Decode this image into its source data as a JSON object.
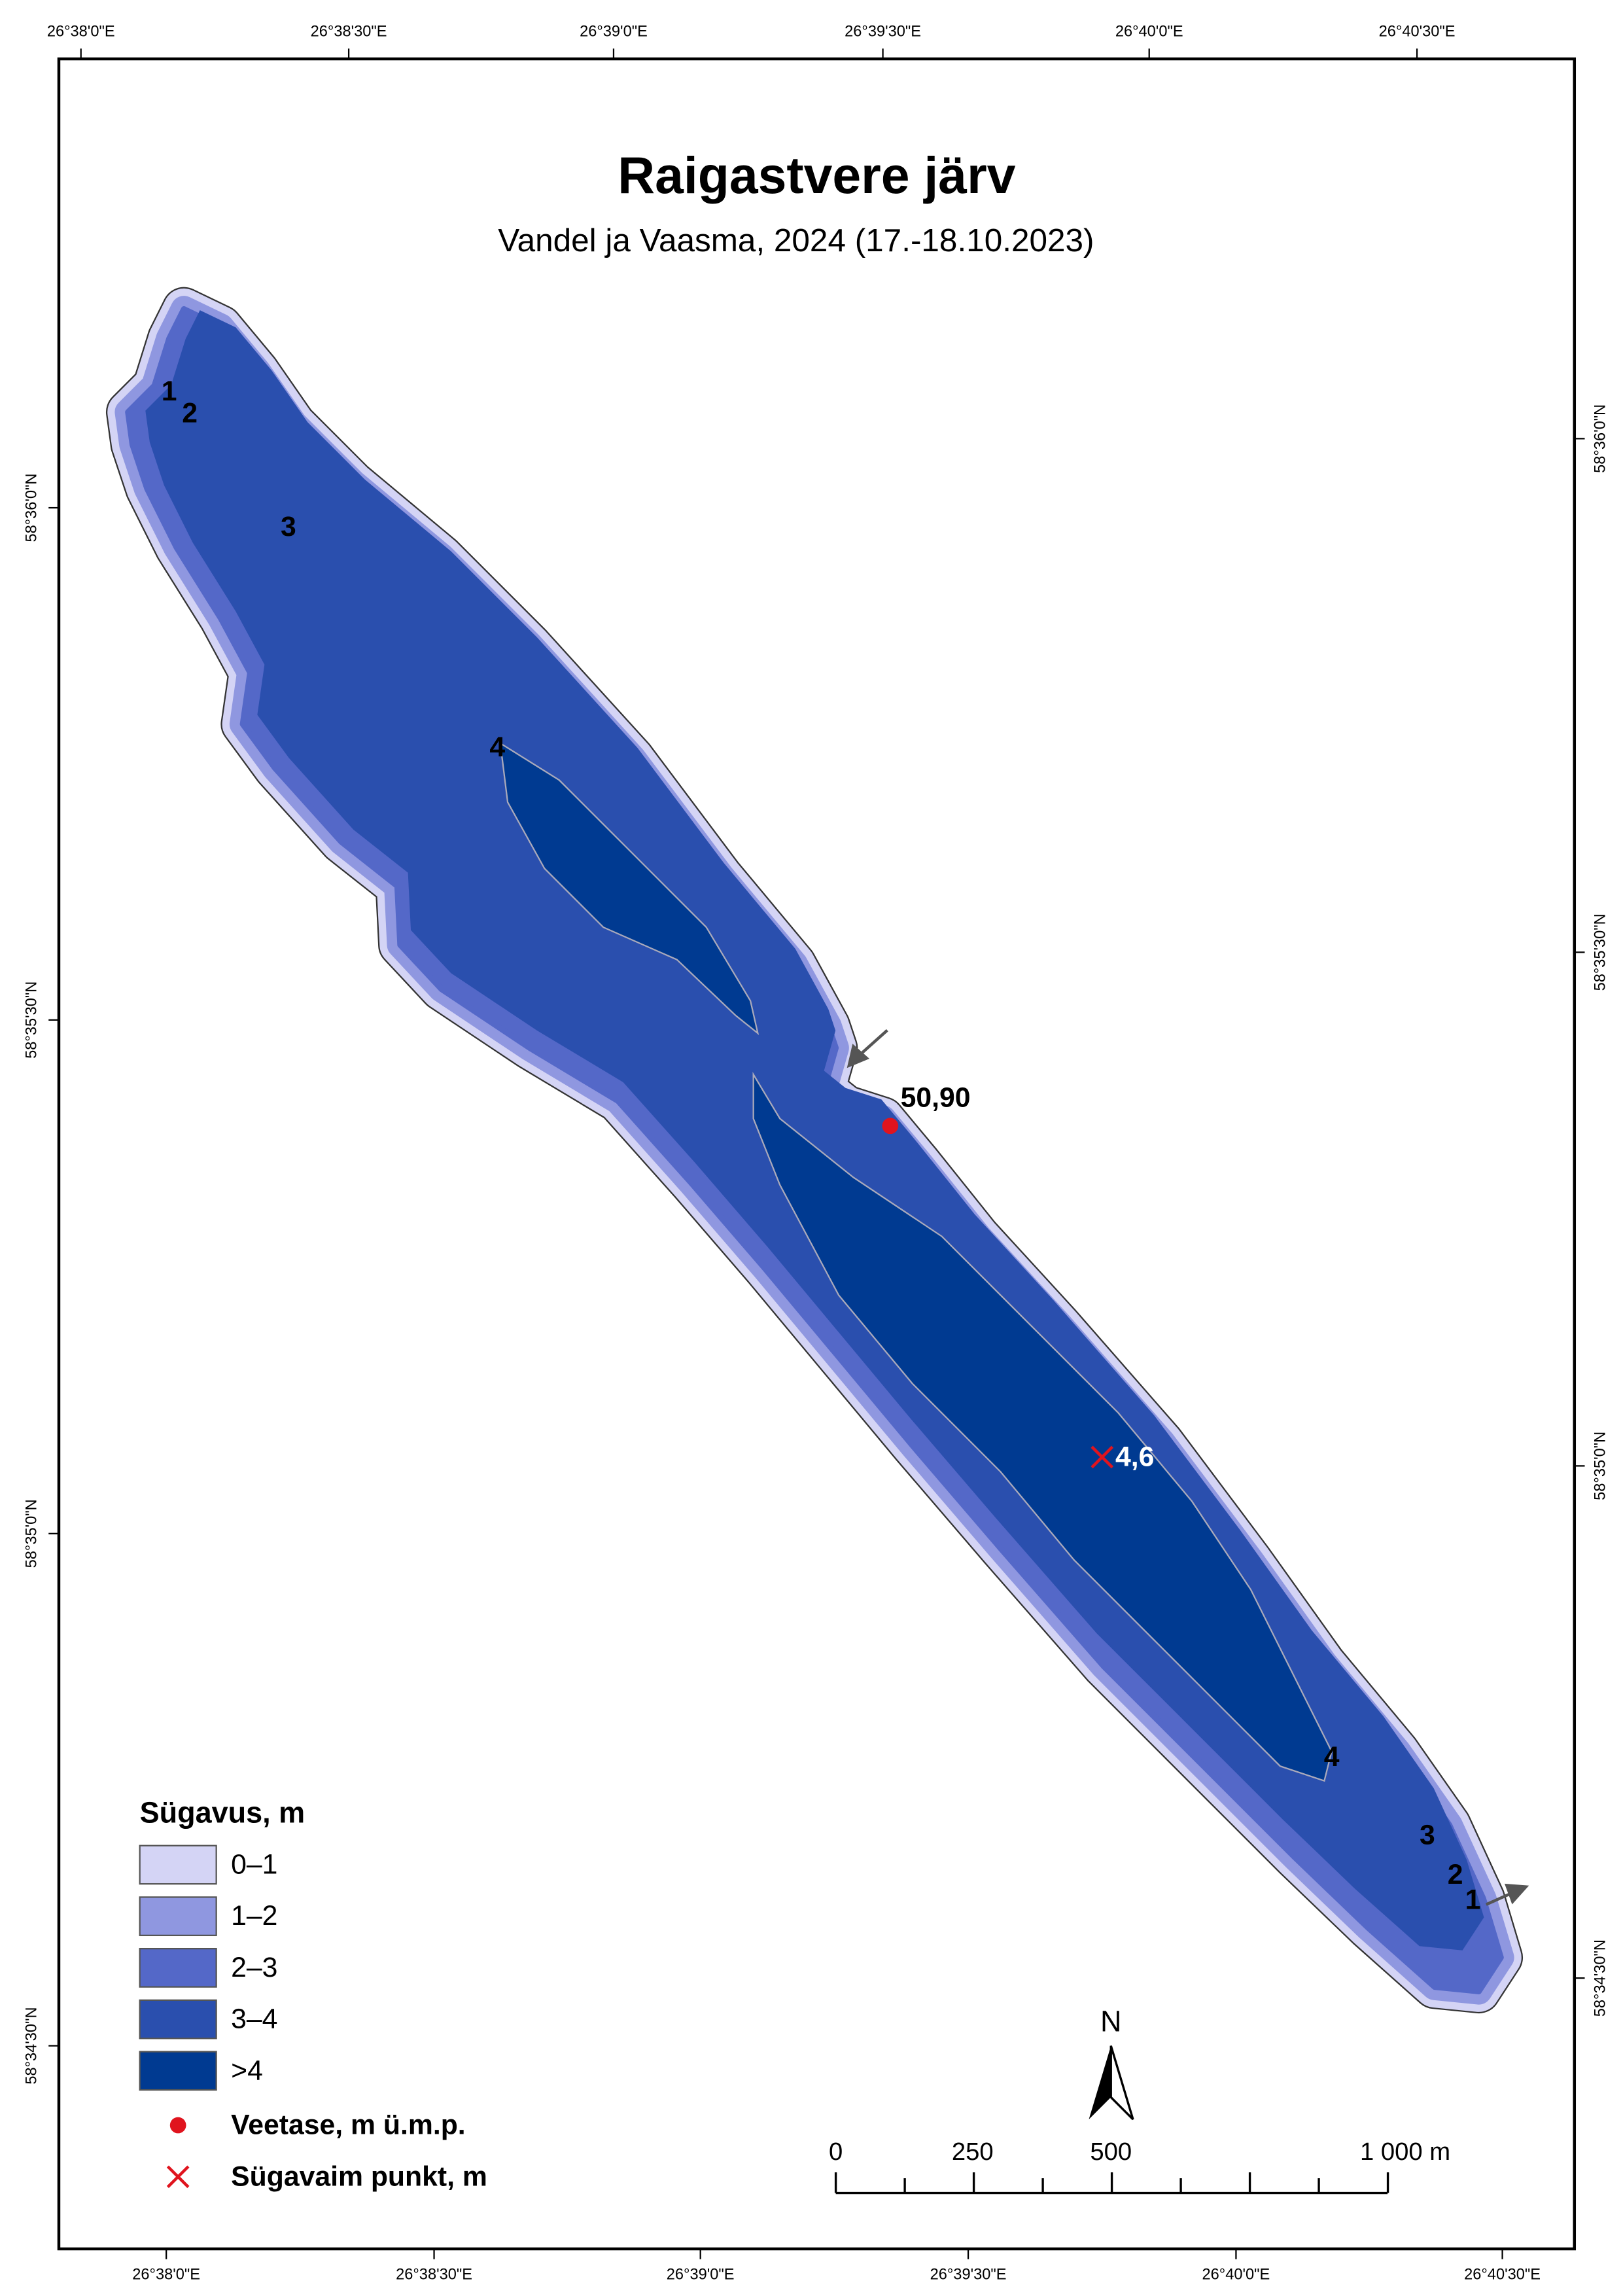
{
  "title": "Raigastvere järv",
  "subtitle": "Vandel ja Vaasma, 2024 (17.-18.10.2023)",
  "graticule": {
    "top": [
      "26°38'0\"E",
      "26°38'30\"E",
      "26°39'0\"E",
      "26°39'30\"E",
      "26°40'0\"E",
      "26°40'30\"E"
    ],
    "bottom": [
      "26°38'0\"E",
      "26°38'30\"E",
      "26°39'0\"E",
      "26°39'30\"E",
      "26°40'0\"E",
      "26°40'30\"E"
    ],
    "left": [
      "58°36'0\"N",
      "58°35'30\"N",
      "58°35'0\"N",
      "58°34'30\"N"
    ],
    "right": [
      "58°36'0\"N",
      "58°35'30\"N",
      "58°35'0\"N",
      "58°34'30\"N"
    ]
  },
  "contour_labels": [
    "1",
    "2",
    "3",
    "4",
    "4",
    "3",
    "2",
    "1"
  ],
  "water_level": "50,90",
  "deepest_point": "4,6",
  "legend": {
    "title": "Sügavus, m",
    "items": [
      {
        "label": "0–1",
        "color": "#d4d4f5"
      },
      {
        "label": "1–2",
        "color": "#8f97e0"
      },
      {
        "label": "2–3",
        "color": "#5468c8"
      },
      {
        "label": "3–4",
        "color": "#2a4fae"
      },
      {
        "label": ">4",
        "color": "#003a91"
      }
    ],
    "water_level_label": "Veetase, m ü.m.p.",
    "deepest_label": "Sügavaim punkt, m"
  },
  "scale_bar": {
    "labels": [
      "0",
      "250",
      "500",
      "1 000 m"
    ]
  },
  "north": "N"
}
